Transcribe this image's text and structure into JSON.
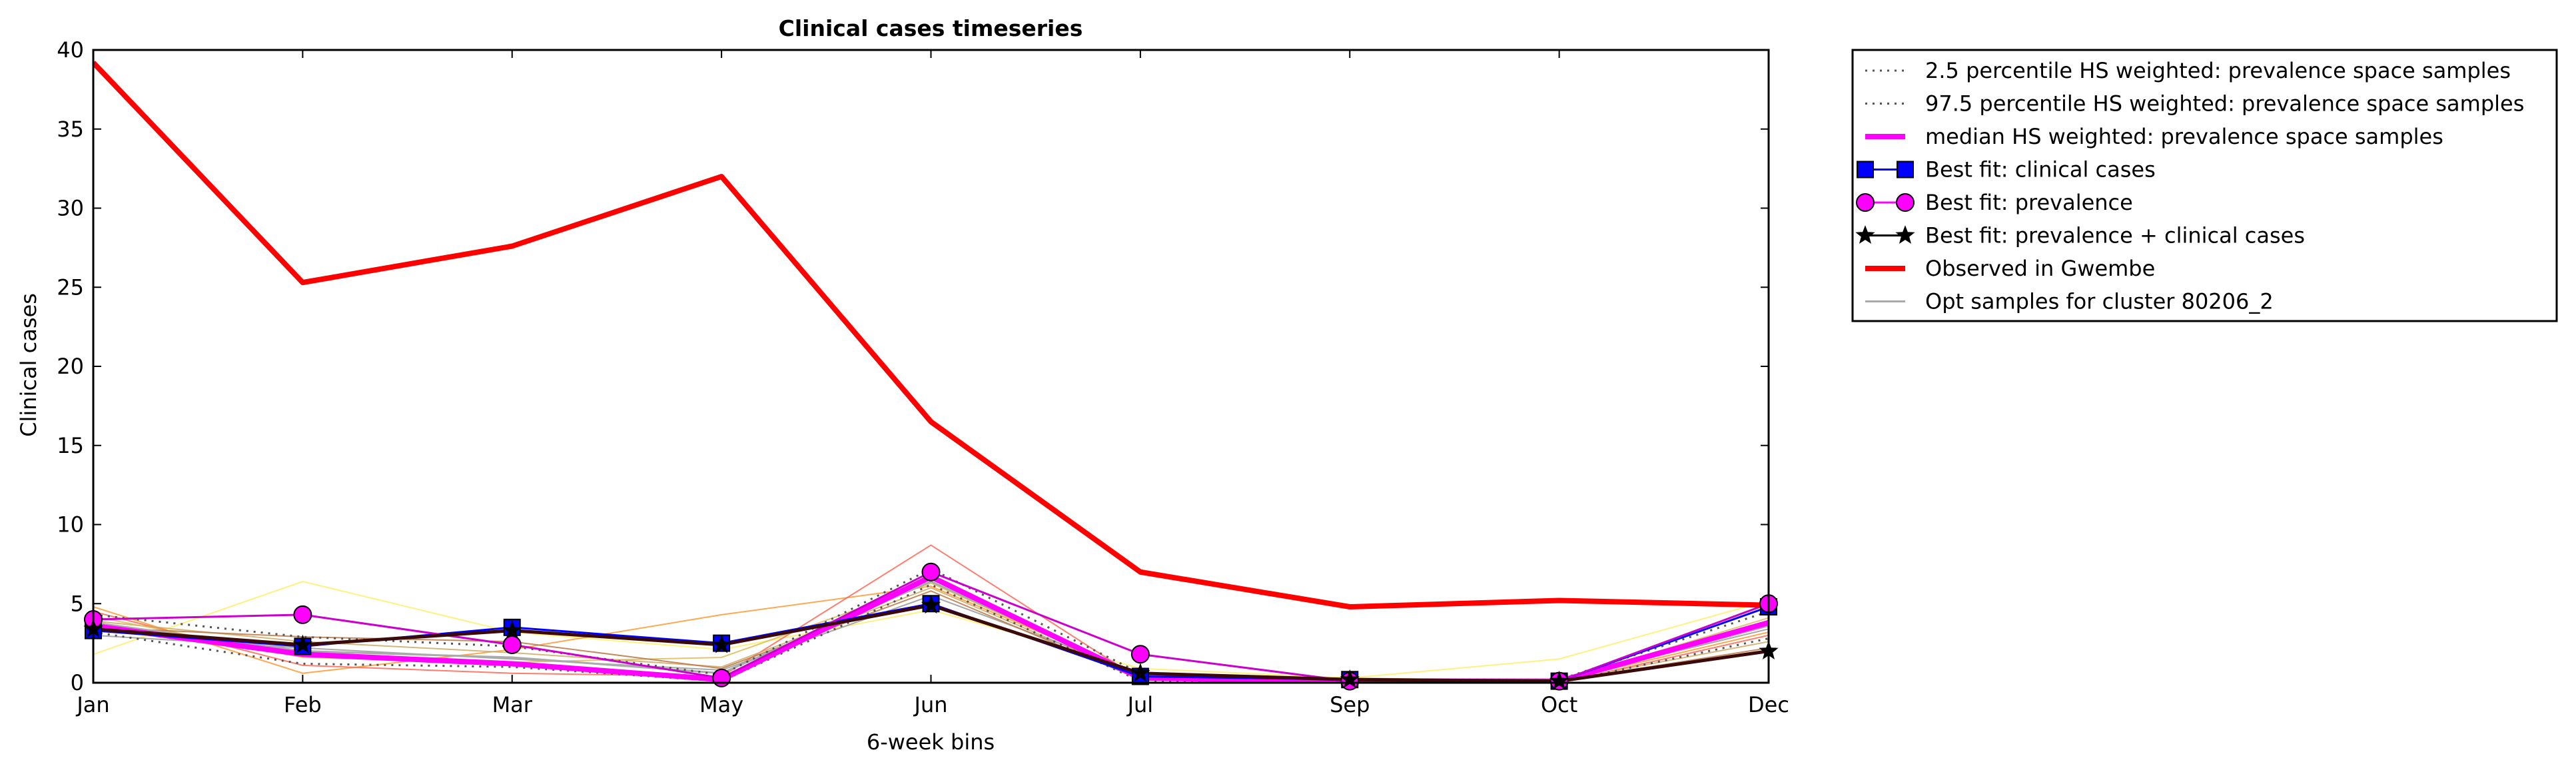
{
  "chart_data": {
    "type": "line",
    "title": "Clinical cases timeseries",
    "xlabel": "6-week bins",
    "ylabel": "Clinical cases",
    "categories": [
      "Jan",
      "Feb",
      "Mar",
      "May",
      "Jun",
      "Jul",
      "Sep",
      "Oct",
      "Dec"
    ],
    "ylim": [
      0,
      40
    ],
    "yticks": [
      0,
      5,
      10,
      15,
      20,
      25,
      30,
      35,
      40
    ],
    "grid": false,
    "legend_position": "outside-top-right",
    "legend": [
      {
        "label": "2.5 percentile HS weighted: prevalence space samples",
        "style": "dotted",
        "color": "#555555"
      },
      {
        "label": "97.5 percentile HS weighted: prevalence space samples",
        "style": "dotted",
        "color": "#555555"
      },
      {
        "label": "median HS weighted: prevalence space samples",
        "style": "solid",
        "color": "#ff00ff"
      },
      {
        "label": "Best fit: clinical cases",
        "style": "square-marker",
        "color": "#0000ff"
      },
      {
        "label": "Best fit: prevalence",
        "style": "circle-marker",
        "color": "#ff00ff"
      },
      {
        "label": "Best fit: prevalence + clinical cases",
        "style": "star-marker",
        "color": "#000000"
      },
      {
        "label": "Observed in Gwembe",
        "style": "solid",
        "color": "#ff0000"
      },
      {
        "label": "Opt samples for cluster 80206_2",
        "style": "solid",
        "color": "#aaaaaa"
      }
    ],
    "series": [
      {
        "name": "2.5 percentile HS weighted: prevalence space samples",
        "values": [
          3.2,
          1.2,
          1.0,
          0.1,
          6.2,
          0.1,
          0.0,
          0.0,
          2.8
        ]
      },
      {
        "name": "97.5 percentile HS weighted: prevalence space samples",
        "values": [
          4.3,
          2.9,
          2.3,
          0.5,
          7.2,
          0.6,
          0.2,
          0.2,
          4.5
        ]
      },
      {
        "name": "median HS weighted: prevalence space samples",
        "values": [
          3.6,
          1.8,
          1.2,
          0.2,
          6.7,
          0.3,
          0.1,
          0.1,
          3.8
        ]
      },
      {
        "name": "Best fit: clinical cases",
        "values": [
          3.3,
          2.3,
          3.5,
          2.5,
          5.0,
          0.4,
          0.2,
          0.1,
          4.8
        ]
      },
      {
        "name": "Best fit: prevalence",
        "values": [
          4.0,
          4.3,
          2.4,
          0.3,
          7.0,
          1.8,
          0.1,
          0.1,
          5.0
        ]
      },
      {
        "name": "Best fit: prevalence + clinical cases",
        "values": [
          3.4,
          2.4,
          3.3,
          2.4,
          4.9,
          0.6,
          0.2,
          0.1,
          2.0
        ]
      },
      {
        "name": "Observed in Gwembe",
        "values": [
          39.2,
          25.3,
          27.6,
          32.0,
          16.5,
          7.0,
          4.8,
          5.2,
          4.9
        ]
      },
      {
        "name": "Opt samples for cluster 80206_2",
        "values": [
          3.8,
          2.0,
          1.6,
          0.6,
          6.4,
          0.4,
          0.2,
          0.1,
          3.6
        ]
      },
      {
        "values": [
          1.8,
          6.4,
          3.2,
          2.1,
          4.6,
          0.9,
          0.3,
          1.5,
          5.2
        ]
      },
      {
        "values": [
          4.8,
          0.6,
          2.1,
          4.3,
          6.1,
          0.5,
          0.2,
          0.1,
          3.2
        ]
      },
      {
        "values": [
          4.5,
          1.1,
          0.6,
          0.4,
          8.7,
          0.2,
          0.1,
          0.0,
          3.0
        ]
      },
      {
        "values": [
          3.9,
          2.6,
          1.9,
          1.0,
          6.0,
          0.3,
          0.1,
          0.1,
          2.6
        ]
      },
      {
        "values": [
          3.0,
          2.2,
          1.5,
          0.8,
          5.5,
          0.6,
          0.2,
          0.2,
          3.4
        ]
      },
      {
        "values": [
          4.2,
          1.6,
          1.3,
          1.6,
          6.3,
          0.4,
          0.3,
          0.1,
          4.1
        ]
      },
      {
        "values": [
          3.5,
          2.9,
          2.6,
          0.9,
          5.8,
          0.2,
          0.1,
          0.1,
          2.2
        ]
      }
    ],
    "colors": {
      "observed": "#ff0000",
      "median": "#ff00ff",
      "percentile": "#555555",
      "best_clinical": "#0000ff",
      "best_prevalence": "#ff00ff",
      "best_both": "#3a0a0a",
      "opt_samples": "#aaaaaa",
      "extra_samples": [
        "#ffee66",
        "#ff9933",
        "#ff6655",
        "#ccaa66",
        "#999999",
        "#ddbb55",
        "#bb7744"
      ]
    }
  }
}
